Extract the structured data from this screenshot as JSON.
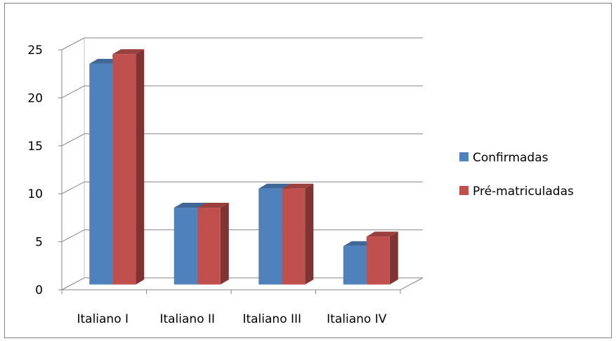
{
  "chart_data": {
    "type": "bar",
    "subtype": "3d-clustered-column",
    "categories": [
      "Italiano I",
      "Italiano II",
      "Italiano III",
      "Italiano IV"
    ],
    "series": [
      {
        "name": "Confirmadas",
        "values": [
          23,
          8,
          10,
          4
        ],
        "color": "#4f81bd"
      },
      {
        "name": "Pré-matriculadas",
        "values": [
          24,
          8,
          10,
          5
        ],
        "color": "#c0504d"
      }
    ],
    "ylim": [
      0,
      25
    ],
    "yticks": [
      0,
      5,
      10,
      15,
      20,
      25
    ],
    "grid": true,
    "legend_position": "right"
  }
}
